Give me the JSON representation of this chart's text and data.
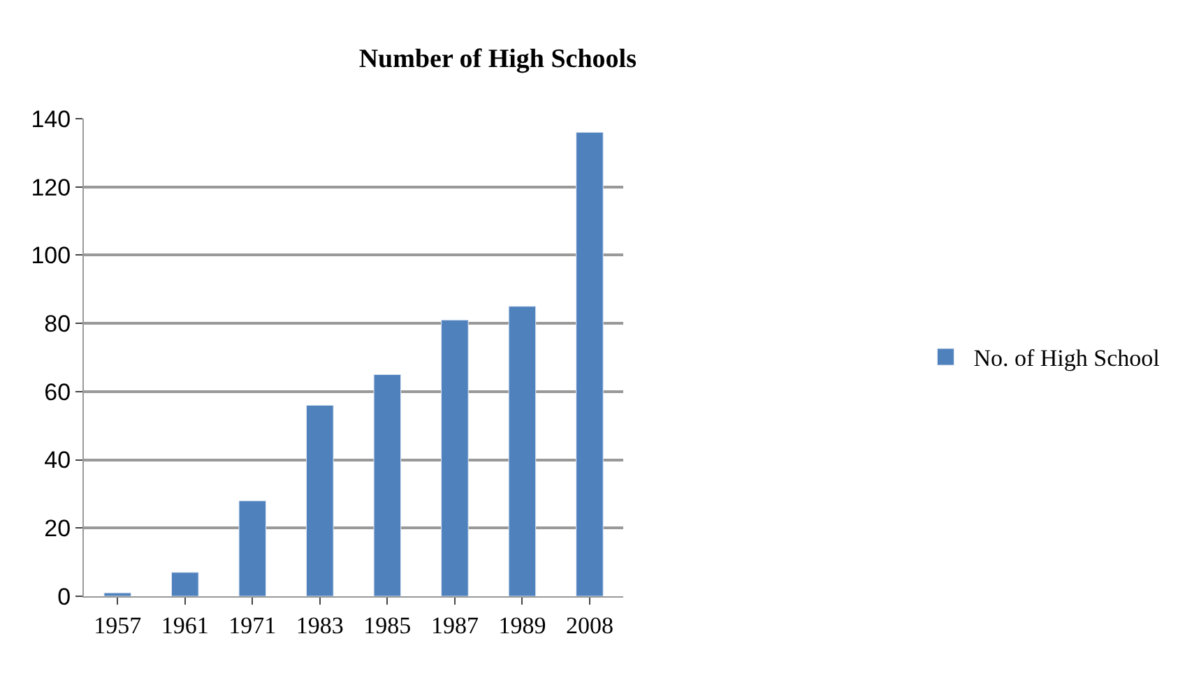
{
  "chart_data": {
    "type": "bar",
    "title": "Number of High Schools",
    "categories": [
      "1957",
      "1961",
      "1971",
      "1983",
      "1985",
      "1987",
      "1989",
      "2008"
    ],
    "series": [
      {
        "name": "No. of High School",
        "color": "#4f81bd",
        "values": [
          1,
          7,
          28,
          56,
          65,
          81,
          85,
          136
        ]
      }
    ],
    "ylim": [
      0,
      140
    ],
    "yticks": [
      0,
      20,
      40,
      60,
      80,
      100,
      120,
      140
    ],
    "grid": "y",
    "legend": "right"
  }
}
